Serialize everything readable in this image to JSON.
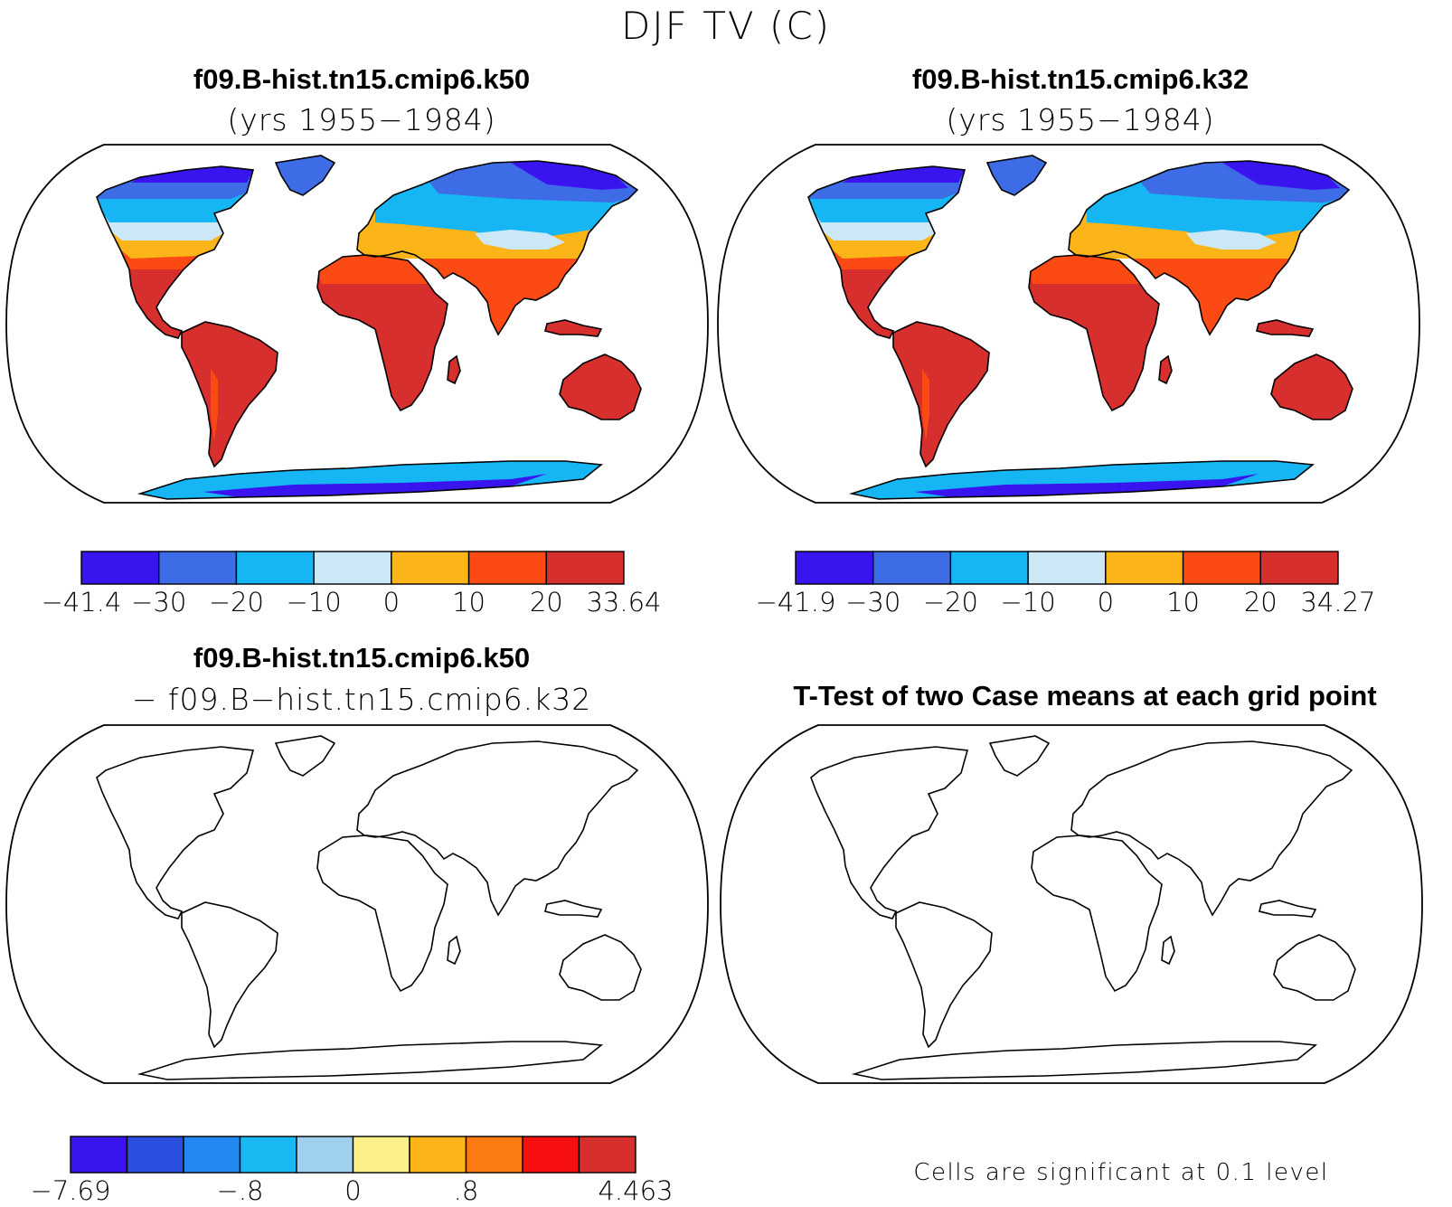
{
  "figure": {
    "title": "DJF TV (C)"
  },
  "panels": {
    "p1": {
      "title": "f09.B-hist.tn15.cmip6.k50",
      "subtitle": "(yrs 1955−1984)"
    },
    "p2": {
      "title": "f09.B-hist.tn15.cmip6.k32",
      "subtitle": "(yrs 1955−1984)"
    },
    "p3": {
      "title": "f09.B-hist.tn15.cmip6.k50",
      "subtitle": "− f09.B−hist.tn15.cmip6.k32"
    },
    "p4": {
      "title": "T-Test of two Case means at each grid point",
      "note": "Cells are significant at 0.1 level"
    }
  },
  "colorbars": {
    "cb1": {
      "colors": [
        "#3a14ee",
        "#3d6ce6",
        "#16b6f4",
        "#cce8f7",
        "#fcb519",
        "#fb4a13",
        "#d62f2d"
      ],
      "labels": [
        "−41.4",
        "−30",
        "−20",
        "−10",
        "0",
        "10",
        "20",
        "33.64"
      ]
    },
    "cb2": {
      "colors": [
        "#3a14ee",
        "#3d6ce6",
        "#16b6f4",
        "#cce8f7",
        "#fcb519",
        "#fb4a13",
        "#d62f2d"
      ],
      "labels": [
        "−41.9",
        "−30",
        "−20",
        "−10",
        "0",
        "10",
        "20",
        "34.27"
      ]
    },
    "cb3": {
      "colors": [
        "#3a14ee",
        "#2a4fe0",
        "#2488f2",
        "#18b8f2",
        "#9fd0ee",
        "#fbf08a",
        "#fcb519",
        "#fb7a12",
        "#f70f0f",
        "#d62f2d"
      ],
      "labels": [
        "−7.69",
        "",
        "",
        "−.8",
        "",
        "0",
        "",
        ".8",
        "",
        "",
        "4.463"
      ]
    }
  }
}
